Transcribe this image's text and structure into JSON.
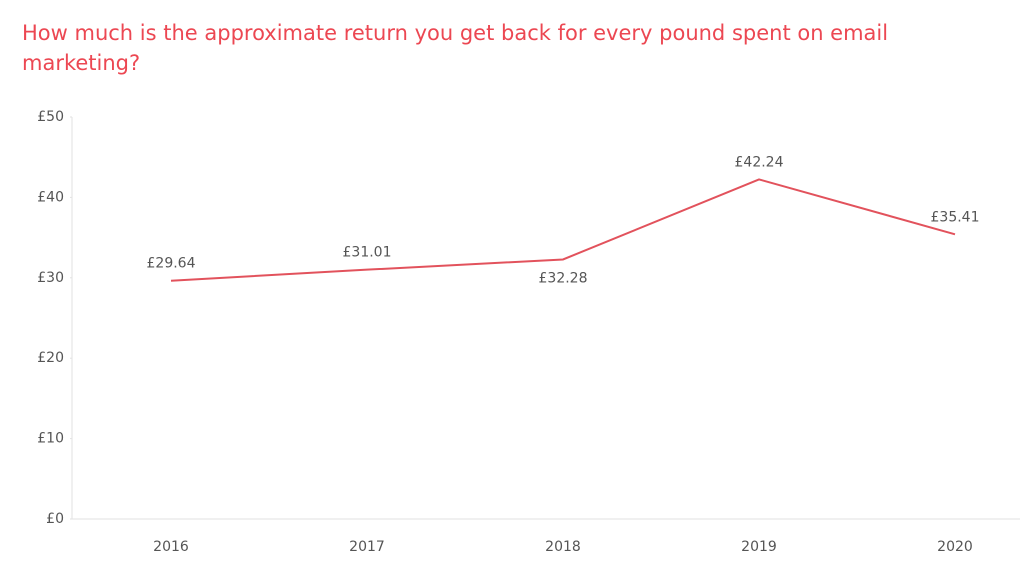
{
  "chart_data": {
    "type": "line",
    "title": "How much is the approximate return you get back for every pound spent on email marketing?",
    "categories": [
      "2016",
      "2017",
      "2018",
      "2019",
      "2020"
    ],
    "series": [
      {
        "color": "#e2525c",
        "values": [
          29.64,
          31.01,
          32.28,
          42.24,
          35.41
        ],
        "value_labels": [
          "£29.64",
          "£31.01",
          "£32.28",
          "£42.24",
          "£35.41"
        ]
      }
    ],
    "ylim": [
      0,
      50
    ],
    "yticks": [
      {
        "value": 0,
        "label": "£0"
      },
      {
        "value": 10,
        "label": "£10"
      },
      {
        "value": 20,
        "label": "£20"
      },
      {
        "value": 30,
        "label": "£30"
      },
      {
        "value": 40,
        "label": "£40"
      },
      {
        "value": 50,
        "label": "£50"
      }
    ]
  }
}
